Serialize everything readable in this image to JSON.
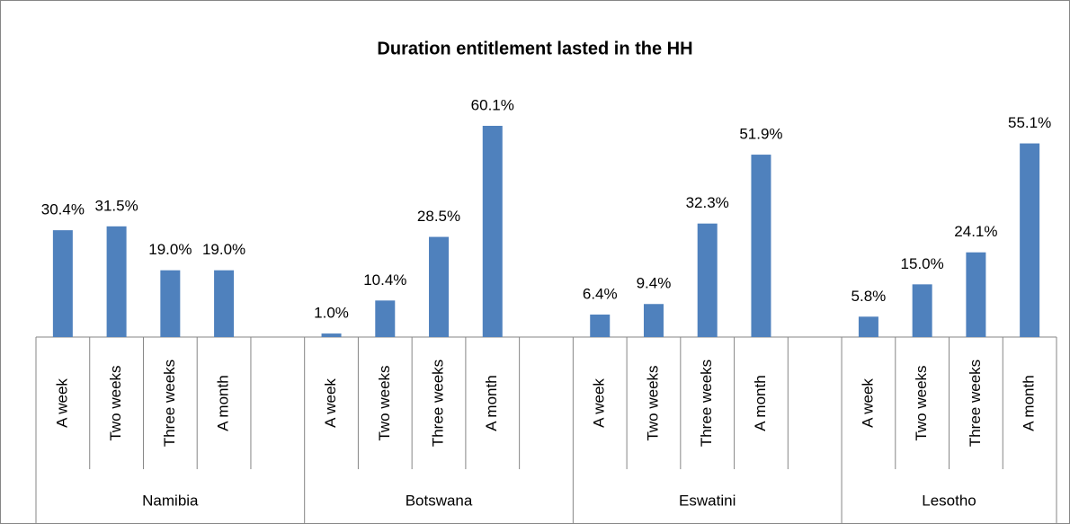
{
  "chart_data": {
    "type": "bar",
    "title": "Duration entitlement lasted in the HH",
    "color": "#4f81bd",
    "groups": [
      {
        "name": "Namibia",
        "categories": [
          "A week",
          "Two weeks",
          "Three weeks",
          "A month"
        ],
        "values": [
          30.4,
          31.5,
          19.0,
          19.0
        ],
        "value_labels": [
          "30.4%",
          "31.5%",
          "19.0%",
          "19.0%"
        ]
      },
      {
        "name": "Botswana",
        "categories": [
          "A week",
          "Two weeks",
          "Three weeks",
          "A month"
        ],
        "values": [
          1.0,
          10.4,
          28.5,
          60.1
        ],
        "value_labels": [
          "1.0%",
          "10.4%",
          "28.5%",
          "60.1%"
        ]
      },
      {
        "name": "Eswatini",
        "categories": [
          "A week",
          "Two weeks",
          "Three weeks",
          "A month"
        ],
        "values": [
          6.4,
          9.4,
          32.3,
          51.9
        ],
        "value_labels": [
          "6.4%",
          "9.4%",
          "32.3%",
          "51.9%"
        ]
      },
      {
        "name": "Lesotho",
        "categories": [
          "A week",
          "Two weeks",
          "Three weeks",
          "A month"
        ],
        "values": [
          5.8,
          15.0,
          24.1,
          55.1
        ],
        "value_labels": [
          "5.8%",
          "15.0%",
          "24.1%",
          "55.1%"
        ]
      }
    ]
  }
}
